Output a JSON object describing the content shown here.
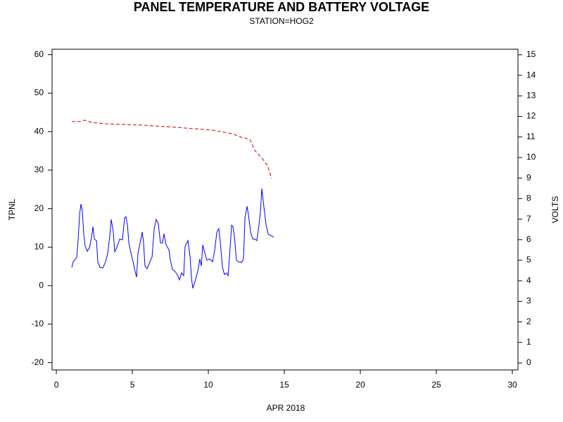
{
  "chart_data": {
    "type": "line",
    "title": "PANEL TEMPERATURE AND BATTERY VOLTAGE",
    "subtitle": "STATION=HOG2",
    "x_label": "APR 2018",
    "y_label": "TPNL",
    "y2_label": "VOLTS",
    "xlim": [
      -0.28,
      30.37
    ],
    "xticks": [
      0,
      5,
      10,
      15,
      20,
      25,
      30
    ],
    "ylim": [
      -21.9,
      61.4
    ],
    "yticks": [
      -20,
      -10,
      0,
      10,
      20,
      30,
      40,
      50,
      60
    ],
    "y2lim": [
      -0.34,
      15.27
    ],
    "y2ticks": [
      0,
      1,
      2,
      3,
      4,
      5,
      6,
      7,
      8,
      9,
      10,
      11,
      12,
      13,
      14,
      15
    ],
    "series": [
      {
        "name": "TPNL",
        "color": "#0000ff",
        "dash": false,
        "x": [
          1.02,
          1.11,
          1.25,
          1.34,
          1.44,
          1.53,
          1.62,
          1.71,
          1.81,
          1.9,
          2.04,
          2.18,
          2.31,
          2.41,
          2.5,
          2.64,
          2.73,
          2.87,
          3.06,
          3.24,
          3.38,
          3.52,
          3.61,
          3.75,
          3.84,
          3.98,
          4.17,
          4.35,
          4.49,
          4.58,
          4.68,
          4.77,
          4.91,
          5.05,
          5.14,
          5.28,
          5.37,
          5.51,
          5.65,
          5.74,
          5.83,
          5.97,
          6.11,
          6.3,
          6.44,
          6.57,
          6.71,
          6.85,
          6.99,
          7.08,
          7.22,
          7.41,
          7.5,
          7.64,
          7.78,
          7.96,
          8.1,
          8.24,
          8.38,
          8.47,
          8.66,
          8.8,
          8.89,
          8.98,
          9.12,
          9.31,
          9.44,
          9.54,
          9.63,
          9.77,
          9.91,
          10.09,
          10.28,
          10.42,
          10.56,
          10.69,
          10.79,
          10.93,
          11.06,
          11.2,
          11.3,
          11.44,
          11.53,
          11.62,
          11.71,
          11.85,
          11.99,
          12.18,
          12.31,
          12.41,
          12.55,
          12.64,
          12.78,
          12.92,
          13.06,
          13.19,
          13.33,
          13.43,
          13.52,
          13.66,
          13.8,
          13.94,
          14.12,
          14.31
        ],
        "values": [
          4.7,
          6.2,
          6.9,
          7.3,
          12.1,
          18.4,
          21.2,
          19.4,
          13.0,
          10.2,
          8.9,
          9.9,
          12.4,
          15.3,
          12.1,
          11.7,
          6.2,
          4.7,
          4.6,
          6.2,
          8.4,
          13.0,
          17.2,
          13.9,
          8.8,
          9.9,
          12.1,
          11.9,
          17.5,
          17.9,
          15.7,
          11.1,
          8.4,
          6.2,
          4.4,
          2.2,
          8.4,
          11.1,
          13.9,
          11.1,
          5.1,
          4.4,
          5.7,
          7.5,
          14.8,
          17.2,
          16.1,
          11.1,
          11.1,
          13.5,
          10.6,
          9.3,
          6.6,
          4.2,
          3.8,
          2.9,
          1.5,
          3.3,
          2.6,
          10.2,
          11.7,
          7.5,
          2.0,
          -0.7,
          1.1,
          3.8,
          6.9,
          5.1,
          10.6,
          8.4,
          6.6,
          6.9,
          6.2,
          9.3,
          13.9,
          14.8,
          11.1,
          4.7,
          2.9,
          3.3,
          2.6,
          10.2,
          15.7,
          15.3,
          13.0,
          6.6,
          6.2,
          6.0,
          6.9,
          17.5,
          20.6,
          18.4,
          13.9,
          12.1,
          12.1,
          11.7,
          15.7,
          19.4,
          25.2,
          20.3,
          15.7,
          13.3,
          13.0,
          12.6
        ]
      },
      {
        "name": "VOLTS",
        "color": "#cc0000",
        "dash": true,
        "axis": "y2",
        "x": [
          1.02,
          1.62,
          1.85,
          2.31,
          3.24,
          5.56,
          7.87,
          10.19,
          11.57,
          12.27,
          12.73,
          13.06,
          13.52,
          13.89,
          14.17
        ],
        "values": [
          11.75,
          11.75,
          11.82,
          11.71,
          11.64,
          11.58,
          11.47,
          11.34,
          11.16,
          10.96,
          10.89,
          10.34,
          9.97,
          9.62,
          8.97
        ]
      }
    ]
  }
}
